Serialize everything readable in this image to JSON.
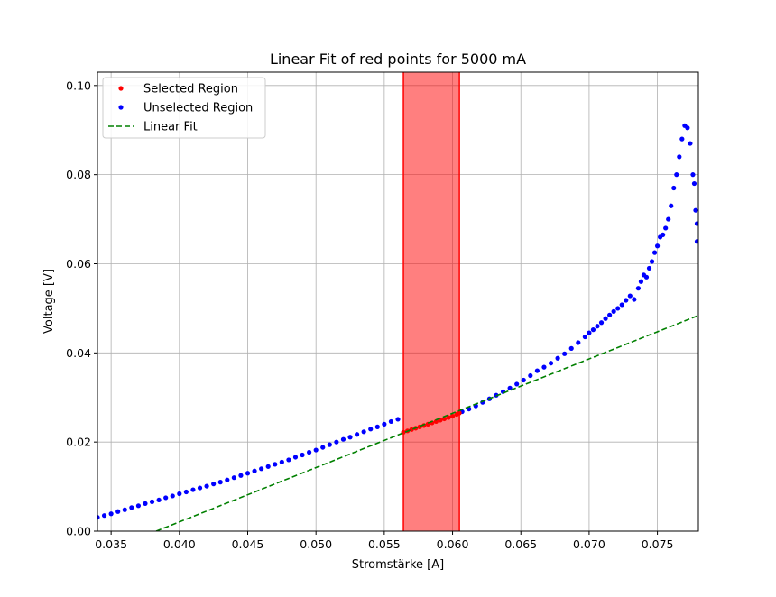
{
  "chart_data": {
    "type": "scatter",
    "title": "Linear Fit of red points for 5000 mA",
    "xlabel": "Stromstärke [A]",
    "ylabel": "Voltage [V]",
    "xlim": [
      0.034,
      0.078
    ],
    "ylim": [
      0.0,
      0.103
    ],
    "xticks": [
      "0.035",
      "0.040",
      "0.045",
      "0.050",
      "0.055",
      "0.060",
      "0.065",
      "0.070",
      "0.075"
    ],
    "xtick_values": [
      0.035,
      0.04,
      0.045,
      0.05,
      0.055,
      0.06,
      0.065,
      0.07,
      0.075
    ],
    "yticks": [
      "0.00",
      "0.02",
      "0.04",
      "0.06",
      "0.08",
      "0.10"
    ],
    "ytick_values": [
      0.0,
      0.02,
      0.04,
      0.06,
      0.08,
      0.1
    ],
    "grid": true,
    "legend_position": "upper-left",
    "legend": [
      {
        "label": "Selected Region",
        "marker": "dot",
        "color": "#ff0000"
      },
      {
        "label": "Unselected Region",
        "marker": "dot",
        "color": "#0000ff"
      },
      {
        "label": "Linear Fit",
        "marker": "dashed-line",
        "color": "#008000"
      }
    ],
    "selected_region": {
      "x_start": 0.0564,
      "x_end": 0.0605,
      "color": "#ff0000"
    },
    "series": [
      {
        "name": "Unselected Region",
        "color": "#0000ff",
        "points": [
          [
            0.034,
            0.0031
          ],
          [
            0.0345,
            0.0035
          ],
          [
            0.035,
            0.0039
          ],
          [
            0.0355,
            0.0044
          ],
          [
            0.036,
            0.0048
          ],
          [
            0.0365,
            0.0053
          ],
          [
            0.037,
            0.0057
          ],
          [
            0.0375,
            0.0062
          ],
          [
            0.038,
            0.0066
          ],
          [
            0.0385,
            0.007
          ],
          [
            0.039,
            0.0075
          ],
          [
            0.0395,
            0.0079
          ],
          [
            0.04,
            0.0084
          ],
          [
            0.0405,
            0.0088
          ],
          [
            0.041,
            0.0093
          ],
          [
            0.0415,
            0.0097
          ],
          [
            0.042,
            0.0101
          ],
          [
            0.0425,
            0.0106
          ],
          [
            0.043,
            0.011
          ],
          [
            0.0435,
            0.0115
          ],
          [
            0.044,
            0.012
          ],
          [
            0.0445,
            0.0125
          ],
          [
            0.045,
            0.013
          ],
          [
            0.0455,
            0.0135
          ],
          [
            0.046,
            0.014
          ],
          [
            0.0465,
            0.0145
          ],
          [
            0.047,
            0.015
          ],
          [
            0.0475,
            0.0155
          ],
          [
            0.048,
            0.016
          ],
          [
            0.0485,
            0.0166
          ],
          [
            0.049,
            0.0171
          ],
          [
            0.0495,
            0.0177
          ],
          [
            0.05,
            0.0182
          ],
          [
            0.0505,
            0.0188
          ],
          [
            0.051,
            0.0194
          ],
          [
            0.0515,
            0.02
          ],
          [
            0.052,
            0.0206
          ],
          [
            0.0525,
            0.0211
          ],
          [
            0.053,
            0.0217
          ],
          [
            0.0535,
            0.0223
          ],
          [
            0.054,
            0.0229
          ],
          [
            0.0545,
            0.0234
          ],
          [
            0.055,
            0.024
          ],
          [
            0.0555,
            0.0246
          ],
          [
            0.056,
            0.0251
          ],
          [
            0.0607,
            0.0268
          ],
          [
            0.0612,
            0.0274
          ],
          [
            0.0617,
            0.0281
          ],
          [
            0.0622,
            0.0289
          ],
          [
            0.0627,
            0.0297
          ],
          [
            0.0632,
            0.0305
          ],
          [
            0.0637,
            0.0313
          ],
          [
            0.0642,
            0.0321
          ],
          [
            0.0647,
            0.033
          ],
          [
            0.0652,
            0.0339
          ],
          [
            0.0657,
            0.0349
          ],
          [
            0.0662,
            0.036
          ],
          [
            0.0667,
            0.0368
          ],
          [
            0.0672,
            0.0377
          ],
          [
            0.0677,
            0.0388
          ],
          [
            0.0682,
            0.0398
          ],
          [
            0.0687,
            0.041
          ],
          [
            0.0692,
            0.0423
          ],
          [
            0.0697,
            0.0436
          ],
          [
            0.07,
            0.0445
          ],
          [
            0.0703,
            0.0452
          ],
          [
            0.0706,
            0.046
          ],
          [
            0.0709,
            0.0468
          ],
          [
            0.0712,
            0.0477
          ],
          [
            0.0715,
            0.0485
          ],
          [
            0.0718,
            0.0493
          ],
          [
            0.0721,
            0.05
          ],
          [
            0.0724,
            0.0508
          ],
          [
            0.0727,
            0.0518
          ],
          [
            0.073,
            0.0528
          ],
          [
            0.0733,
            0.052
          ],
          [
            0.0736,
            0.0545
          ],
          [
            0.0738,
            0.056
          ],
          [
            0.074,
            0.0575
          ],
          [
            0.0742,
            0.057
          ],
          [
            0.0744,
            0.059
          ],
          [
            0.0746,
            0.0605
          ],
          [
            0.0748,
            0.0625
          ],
          [
            0.075,
            0.064
          ],
          [
            0.0752,
            0.066
          ],
          [
            0.0754,
            0.0665
          ],
          [
            0.0756,
            0.068
          ],
          [
            0.0758,
            0.07
          ],
          [
            0.076,
            0.073
          ],
          [
            0.0762,
            0.077
          ],
          [
            0.0764,
            0.08
          ],
          [
            0.0766,
            0.084
          ],
          [
            0.0768,
            0.088
          ],
          [
            0.077,
            0.091
          ],
          [
            0.0772,
            0.0905
          ],
          [
            0.0774,
            0.087
          ],
          [
            0.0776,
            0.08
          ],
          [
            0.0777,
            0.078
          ],
          [
            0.0778,
            0.072
          ],
          [
            0.0779,
            0.069
          ],
          [
            0.0779,
            0.065
          ]
        ]
      },
      {
        "name": "Selected Region",
        "color": "#ff0000",
        "points": [
          [
            0.0564,
            0.0222
          ],
          [
            0.0567,
            0.0225
          ],
          [
            0.057,
            0.0228
          ],
          [
            0.0573,
            0.0231
          ],
          [
            0.0576,
            0.0234
          ],
          [
            0.0579,
            0.0237
          ],
          [
            0.0582,
            0.024
          ],
          [
            0.0585,
            0.0243
          ],
          [
            0.0588,
            0.0246
          ],
          [
            0.0591,
            0.0249
          ],
          [
            0.0594,
            0.0252
          ],
          [
            0.0597,
            0.0255
          ],
          [
            0.06,
            0.0258
          ],
          [
            0.0603,
            0.0262
          ],
          [
            0.0605,
            0.0265
          ]
        ]
      }
    ],
    "fit_line": {
      "name": "Linear Fit",
      "color": "#008000",
      "x": [
        0.0383,
        0.078
      ],
      "y": [
        0.0,
        0.0484
      ]
    }
  }
}
